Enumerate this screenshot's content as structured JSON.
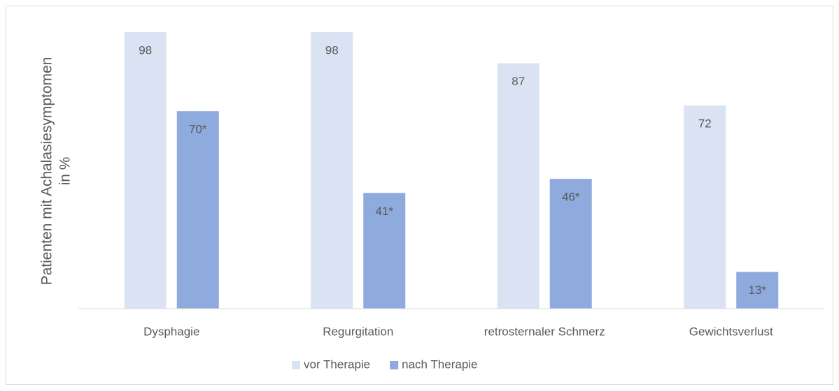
{
  "chart_data": {
    "type": "bar",
    "ylabel": [
      "Patienten mit Achalasiesymptomen",
      "in %"
    ],
    "categories": [
      "Dysphagie",
      "Regurgitation",
      "retrosternaler Schmerz",
      "Gewichtsverlust"
    ],
    "series": [
      {
        "name": "vor Therapie",
        "color": "#dae3f3",
        "values": [
          98,
          98,
          87,
          72
        ]
      },
      {
        "name": "nach Therapie",
        "color": "#8faadc",
        "values": [
          70,
          41,
          46,
          13
        ],
        "value_labels": [
          "70*",
          "41*",
          "46*",
          "13*"
        ]
      }
    ],
    "ylim": [
      0,
      100
    ],
    "legend": "bottom"
  }
}
